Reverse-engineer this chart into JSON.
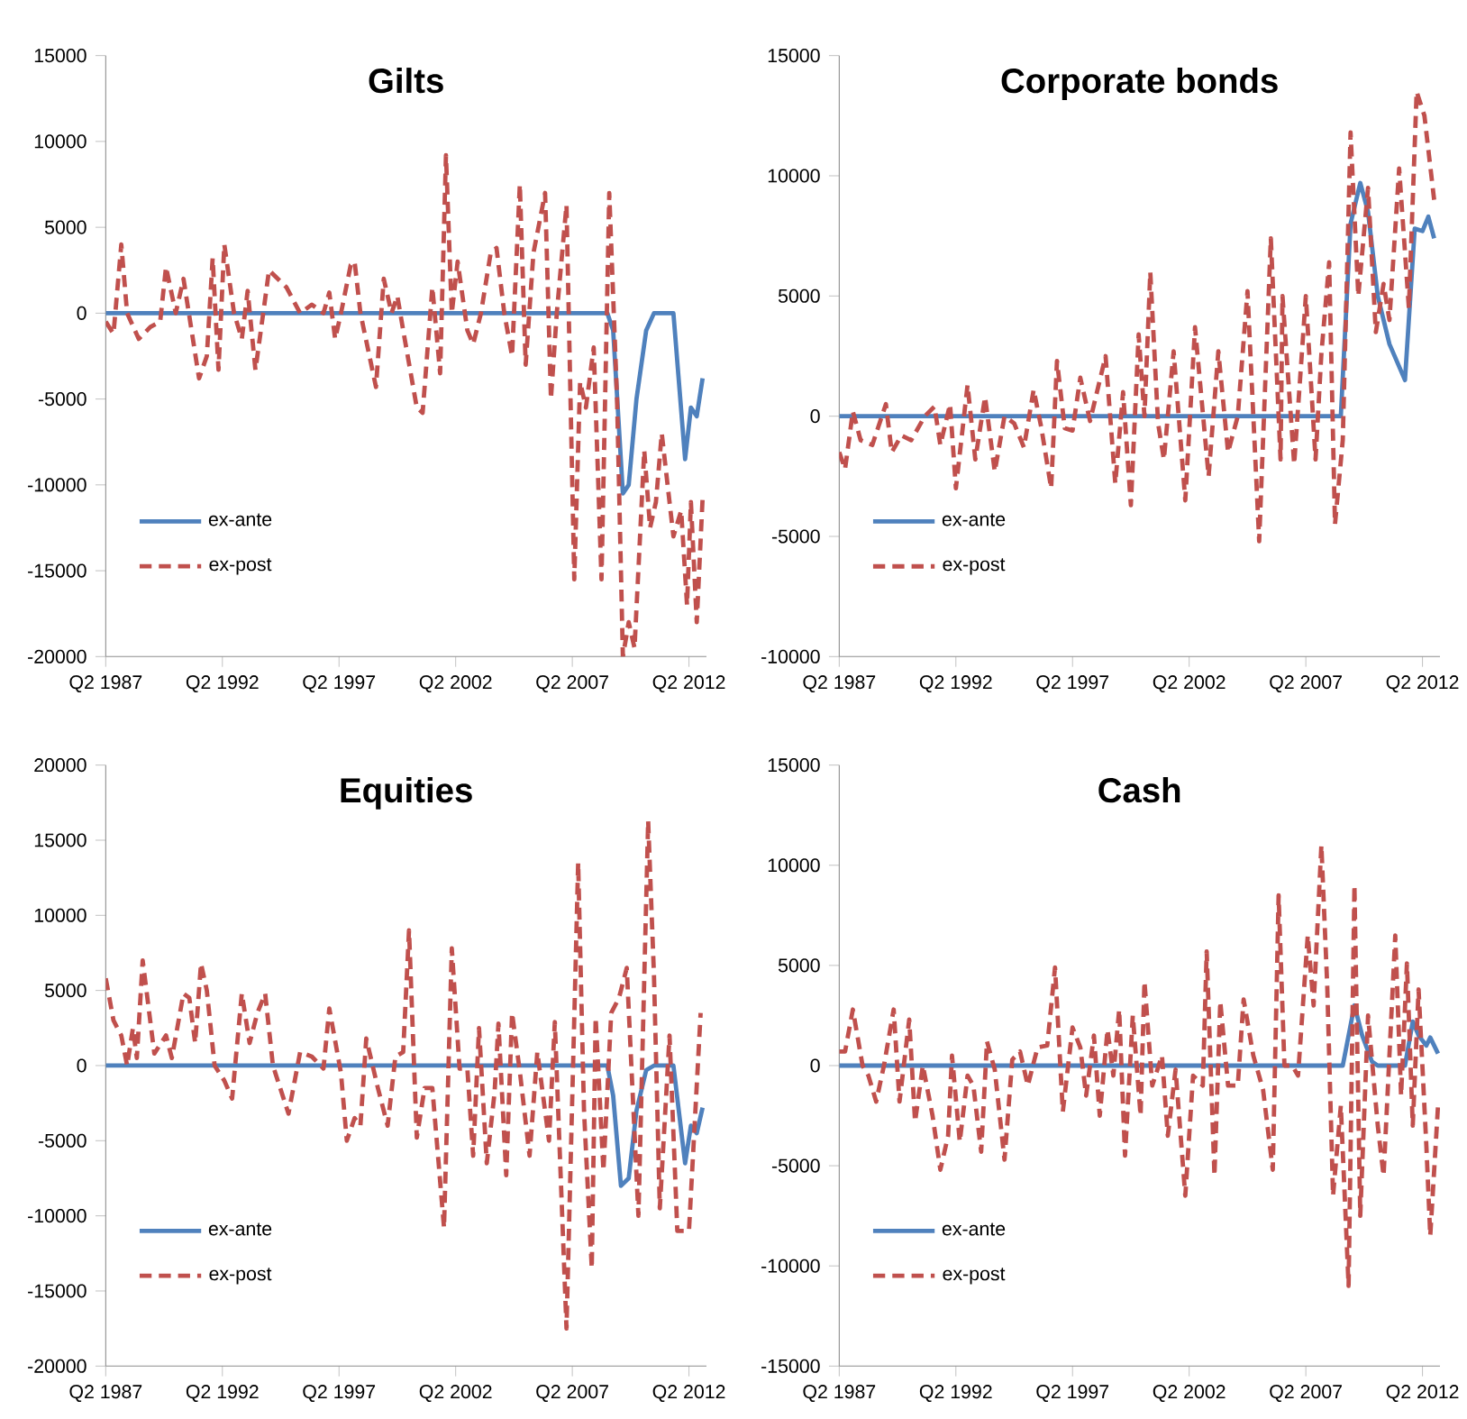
{
  "chart_data": [
    {
      "type": "line",
      "title": "Gilts",
      "xlim": [
        "1987-04",
        "2013-01"
      ],
      "ylim": [
        -20000,
        15000
      ],
      "yticks": [
        -20000,
        -15000,
        -10000,
        -5000,
        0,
        5000,
        10000,
        15000
      ],
      "xticks": [
        {
          "value": "1987-04",
          "label": "Q2 1987"
        },
        {
          "value": "1992-04",
          "label": "Q2 1992"
        },
        {
          "value": "1997-04",
          "label": "Q2 1997"
        },
        {
          "value": "2002-04",
          "label": "Q2 2002"
        },
        {
          "value": "2007-04",
          "label": "Q2 2007"
        },
        {
          "value": "2012-04",
          "label": "Q2 2012"
        }
      ],
      "legend": "bottom left",
      "grid": false,
      "series": [
        {
          "name": "ex-ante",
          "color": "#4f81bd",
          "line_style": "solid",
          "x": [
            "1987-04",
            "2008-10",
            "2009-01",
            "2009-06",
            "2009-09",
            "2010-01",
            "2010-06",
            "2010-10",
            "2011-08",
            "2012-02",
            "2012-05",
            "2012-08",
            "2012-11"
          ],
          "values": [
            0,
            0,
            -1000,
            -10500,
            -10000,
            -5000,
            -1000,
            0,
            0,
            -8500,
            -5500,
            -6000,
            -3800
          ]
        },
        {
          "name": "ex-post",
          "color": "#c0504d",
          "line_style": "dashed",
          "x": [
            "1987-04",
            "1987-08",
            "1987-12",
            "1988-03",
            "1988-09",
            "1989-03",
            "1989-08",
            "1989-11",
            "1990-04",
            "1990-08",
            "1991-04",
            "1991-08",
            "1991-11",
            "1992-02",
            "1992-05",
            "1992-10",
            "1993-02",
            "1993-05",
            "1993-09",
            "1994-01",
            "1994-04",
            "1995-01",
            "1995-08",
            "1996-02",
            "1996-08",
            "1996-11",
            "1997-02",
            "1997-05",
            "1997-10",
            "1997-12",
            "1998-03",
            "1998-11",
            "1999-03",
            "1999-07",
            "1999-10",
            "2000-01",
            "2000-08",
            "2000-11",
            "2001-04",
            "2001-08",
            "2001-11",
            "2002-02",
            "2002-05",
            "2002-10",
            "2003-01",
            "2003-05",
            "2003-10",
            "2004-01",
            "2004-05",
            "2004-09",
            "2005-01",
            "2005-04",
            "2005-08",
            "2006-02",
            "2006-05",
            "2006-08",
            "2007-01",
            "2007-05",
            "2007-08",
            "2007-11",
            "2008-03",
            "2008-07",
            "2008-11",
            "2009-03",
            "2009-06",
            "2009-09",
            "2009-12",
            "2010-05",
            "2010-08",
            "2010-11",
            "2011-02",
            "2011-05",
            "2011-08",
            "2011-12",
            "2012-03",
            "2012-05",
            "2012-08",
            "2012-11"
          ],
          "values": [
            -500,
            -1200,
            4000,
            0,
            -1500,
            -800,
            -500,
            2700,
            0,
            2000,
            -3800,
            -2500,
            3200,
            -3300,
            4000,
            0,
            -1500,
            1300,
            -3300,
            0,
            2500,
            1500,
            0,
            500,
            0,
            1200,
            -1500,
            0,
            2800,
            3000,
            0,
            -4300,
            2000,
            0,
            1000,
            -1000,
            -5500,
            -5800,
            1500,
            -3500,
            9200,
            0,
            3000,
            -1000,
            -1800,
            0,
            3500,
            3800,
            0,
            -2500,
            7500,
            -3000,
            3500,
            7000,
            -5000,
            0,
            6300,
            -15500,
            -4000,
            -5500,
            -2000,
            -15500,
            7000,
            -5000,
            -20000,
            -18000,
            -19500,
            -8000,
            -12500,
            -11000,
            -7000,
            -10000,
            -13000,
            -11500,
            -17000,
            -11000,
            -18000,
            -10800
          ]
        }
      ]
    },
    {
      "type": "line",
      "title": "Corporate bonds",
      "xlim": [
        "1987-04",
        "2013-01"
      ],
      "ylim": [
        -10000,
        15000
      ],
      "yticks": [
        -10000,
        -5000,
        0,
        5000,
        10000,
        15000
      ],
      "xticks": [
        {
          "value": "1987-04",
          "label": "Q2 1987"
        },
        {
          "value": "1992-04",
          "label": "Q2 1992"
        },
        {
          "value": "1997-04",
          "label": "Q2 1997"
        },
        {
          "value": "2002-04",
          "label": "Q2 2002"
        },
        {
          "value": "2007-04",
          "label": "Q2 2007"
        },
        {
          "value": "2012-04",
          "label": "Q2 2012"
        }
      ],
      "legend": "bottom left",
      "grid": false,
      "series": [
        {
          "name": "ex-ante",
          "color": "#4f81bd",
          "line_style": "solid",
          "x": [
            "1987-04",
            "2008-10",
            "2009-03",
            "2009-08",
            "2009-12",
            "2010-05",
            "2010-11",
            "2011-07",
            "2011-12",
            "2012-04",
            "2012-07",
            "2012-10"
          ],
          "values": [
            0,
            0,
            8000,
            9700,
            8500,
            5000,
            3000,
            1500,
            7800,
            7700,
            8300,
            7400
          ]
        },
        {
          "name": "ex-post",
          "color": "#c0504d",
          "line_style": "dashed",
          "x": [
            "1987-04",
            "1987-07",
            "1987-11",
            "1988-03",
            "1988-09",
            "1989-04",
            "1989-07",
            "1989-12",
            "1990-05",
            "1990-12",
            "1991-05",
            "1991-08",
            "1992-01",
            "1992-04",
            "1992-10",
            "1993-02",
            "1993-07",
            "1993-12",
            "1994-05",
            "1994-10",
            "1995-03",
            "1995-08",
            "1995-12",
            "1996-05",
            "1996-08",
            "1996-12",
            "1997-04",
            "1997-08",
            "1998-01",
            "1998-09",
            "1999-02",
            "1999-06",
            "1999-10",
            "2000-02",
            "2000-05",
            "2000-08",
            "2000-12",
            "2001-03",
            "2001-08",
            "2002-02",
            "2002-07",
            "2003-02",
            "2003-07",
            "2003-12",
            "2004-05",
            "2004-10",
            "2005-04",
            "2005-10",
            "2006-03",
            "2006-04",
            "2006-10",
            "2007-04",
            "2007-09",
            "2007-12",
            "2008-04",
            "2008-07",
            "2008-11",
            "2009-03",
            "2009-07",
            "2009-12",
            "2010-04",
            "2010-08",
            "2010-11",
            "2011-04",
            "2011-09",
            "2012-01",
            "2012-05",
            "2012-10"
          ],
          "values": [
            -1500,
            -2200,
            200,
            -1000,
            -1200,
            500,
            -1500,
            -800,
            -1000,
            0,
            400,
            -1200,
            500,
            -3000,
            1300,
            -1800,
            800,
            -2300,
            0,
            -300,
            -1300,
            1100,
            -500,
            -3000,
            2300,
            -500,
            -600,
            1600,
            -200,
            2500,
            -2800,
            1000,
            -3700,
            3400,
            0,
            6000,
            -300,
            -1800,
            2700,
            -3500,
            3700,
            -2500,
            2700,
            -1500,
            0,
            5200,
            -5200,
            7400,
            -1800,
            5000,
            -2000,
            5000,
            -1800,
            2600,
            6400,
            -4500,
            -1000,
            11800,
            5000,
            9500,
            3500,
            5500,
            4000,
            10300,
            4500,
            13500,
            12500,
            9000
          ]
        }
      ]
    },
    {
      "type": "line",
      "title": "Equities",
      "xlim": [
        "1987-04",
        "2013-01"
      ],
      "ylim": [
        -20000,
        20000
      ],
      "yticks": [
        -20000,
        -15000,
        -10000,
        -5000,
        0,
        5000,
        10000,
        15000,
        20000
      ],
      "xticks": [
        {
          "value": "1987-04",
          "label": "Q2 1987"
        },
        {
          "value": "1992-04",
          "label": "Q2 1992"
        },
        {
          "value": "1997-04",
          "label": "Q2 1997"
        },
        {
          "value": "2002-04",
          "label": "Q2 2002"
        },
        {
          "value": "2007-04",
          "label": "Q2 2007"
        },
        {
          "value": "2012-04",
          "label": "Q2 2012"
        }
      ],
      "legend": "bottom left",
      "grid": false,
      "series": [
        {
          "name": "ex-ante",
          "color": "#4f81bd",
          "line_style": "solid",
          "x": [
            "1987-04",
            "2008-10",
            "2009-01",
            "2009-05",
            "2009-09",
            "2010-01",
            "2010-06",
            "2010-10",
            "2011-08",
            "2012-02",
            "2012-05",
            "2012-08",
            "2012-11"
          ],
          "values": [
            0,
            0,
            -2000,
            -8000,
            -7500,
            -3000,
            -300,
            0,
            0,
            -6500,
            -4000,
            -4500,
            -2800
          ]
        },
        {
          "name": "ex-post",
          "color": "#c0504d",
          "line_style": "dashed",
          "x": [
            "1987-04",
            "1987-08",
            "1987-12",
            "1988-03",
            "1988-06",
            "1988-08",
            "1988-11",
            "1989-05",
            "1989-11",
            "1990-02",
            "1990-08",
            "1990-11",
            "1991-02",
            "1991-05",
            "1991-08",
            "1991-12",
            "1992-05",
            "1992-09",
            "1993-02",
            "1993-06",
            "1993-10",
            "1994-02",
            "1994-06",
            "1995-02",
            "1995-08",
            "1996-02",
            "1996-08",
            "1996-11",
            "1997-05",
            "1997-08",
            "1997-12",
            "1998-03",
            "1998-06",
            "1998-12",
            "1999-05",
            "1999-09",
            "2000-01",
            "2000-04",
            "2000-08",
            "2000-12",
            "2001-04",
            "2001-10",
            "2002-02",
            "2002-06",
            "2002-10",
            "2003-01",
            "2003-04",
            "2003-08",
            "2003-12",
            "2004-02",
            "2004-06",
            "2004-09",
            "2005-01",
            "2005-06",
            "2005-10",
            "2006-04",
            "2006-07",
            "2007-01",
            "2007-07",
            "2007-10",
            "2008-02",
            "2008-04",
            "2008-08",
            "2008-12",
            "2009-04",
            "2009-08",
            "2010-02",
            "2010-07",
            "2010-10",
            "2011-01",
            "2011-06",
            "2011-10",
            "2012-04",
            "2012-10"
          ],
          "values": [
            5800,
            3000,
            2000,
            0,
            2500,
            500,
            7000,
            800,
            2000,
            500,
            4800,
            4500,
            1500,
            6800,
            5000,
            0,
            -1000,
            -2200,
            4800,
            1500,
            3500,
            4800,
            0,
            -3200,
            900,
            600,
            -200,
            3800,
            -500,
            -5000,
            -3500,
            -4000,
            1800,
            -1500,
            -4000,
            600,
            900,
            9000,
            -4800,
            -1500,
            -1500,
            -10800,
            7800,
            -200,
            -200,
            -6000,
            2500,
            -6500,
            -1800,
            2800,
            -7300,
            3500,
            -400,
            -6000,
            900,
            -5000,
            2900,
            -17500,
            13500,
            -3000,
            -13500,
            3200,
            -7000,
            3500,
            4500,
            6500,
            -10000,
            16300,
            6000,
            -9500,
            2000,
            -11000,
            -11000,
            3500
          ]
        }
      ]
    },
    {
      "type": "line",
      "title": "Cash",
      "xlim": [
        "1987-04",
        "2013-01"
      ],
      "ylim": [
        -15000,
        15000
      ],
      "yticks": [
        -15000,
        -10000,
        -5000,
        0,
        5000,
        10000,
        15000
      ],
      "xticks": [
        {
          "value": "1987-04",
          "label": "Q2 1987"
        },
        {
          "value": "1992-04",
          "label": "Q2 1992"
        },
        {
          "value": "1997-04",
          "label": "Q2 1997"
        },
        {
          "value": "2002-04",
          "label": "Q2 2002"
        },
        {
          "value": "2007-04",
          "label": "Q2 2007"
        },
        {
          "value": "2012-04",
          "label": "Q2 2012"
        }
      ],
      "legend": "bottom left",
      "grid": false,
      "series": [
        {
          "name": "ex-ante",
          "color": "#4f81bd",
          "line_style": "solid",
          "x": [
            "1987-04",
            "2008-11",
            "2009-05",
            "2009-09",
            "2010-02",
            "2010-05",
            "2011-07",
            "2011-11",
            "2012-02",
            "2012-06",
            "2012-08",
            "2012-12"
          ],
          "values": [
            0,
            0,
            3000,
            1500,
            200,
            0,
            0,
            2200,
            1500,
            1000,
            1400,
            600
          ]
        },
        {
          "name": "ex-post",
          "color": "#c0504d",
          "line_style": "dashed",
          "x": [
            "1987-04",
            "1987-07",
            "1987-11",
            "1988-04",
            "1988-07",
            "1988-11",
            "1989-03",
            "1989-08",
            "1989-11",
            "1990-04",
            "1990-07",
            "1990-11",
            "1991-04",
            "1991-08",
            "1991-12",
            "1992-02",
            "1992-06",
            "1992-10",
            "1993-01",
            "1993-05",
            "1993-08",
            "1993-12",
            "1994-05",
            "1994-09",
            "1995-01",
            "1995-05",
            "1995-10",
            "1996-03",
            "1996-07",
            "1996-11",
            "1997-04",
            "1997-08",
            "1997-11",
            "1998-03",
            "1998-06",
            "1998-10",
            "1999-01",
            "1999-04",
            "1999-07",
            "1999-11",
            "2000-03",
            "2000-05",
            "2000-09",
            "2001-02",
            "2001-05",
            "2001-09",
            "2002-02",
            "2002-06",
            "2002-11",
            "2003-01",
            "2003-05",
            "2003-08",
            "2003-12",
            "2004-05",
            "2004-08",
            "2005-01",
            "2005-06",
            "2005-11",
            "2006-02",
            "2006-05",
            "2006-09",
            "2006-12",
            "2007-05",
            "2007-08",
            "2007-12",
            "2008-03",
            "2008-06",
            "2008-10",
            "2009-02",
            "2009-05",
            "2009-08",
            "2009-12",
            "2010-05",
            "2010-08",
            "2011-02",
            "2011-05",
            "2011-08",
            "2011-11",
            "2012-02",
            "2012-06",
            "2012-08",
            "2012-12"
          ],
          "values": [
            700,
            700,
            2800,
            0,
            -500,
            -1800,
            0,
            2800,
            -1800,
            2300,
            -2800,
            0,
            -2500,
            -5200,
            -3500,
            500,
            -3800,
            -500,
            -1000,
            -4300,
            1200,
            -200,
            -4700,
            300,
            700,
            -1000,
            900,
            1000,
            4900,
            -2300,
            1900,
            900,
            -1500,
            1500,
            -2500,
            1800,
            -500,
            2800,
            -4500,
            2500,
            -2500,
            4200,
            -1000,
            500,
            -3500,
            -200,
            -6500,
            -500,
            -1000,
            5700,
            -5500,
            3200,
            -1000,
            -1000,
            3300,
            500,
            -1200,
            -5200,
            8500,
            0,
            0,
            -500,
            6500,
            3000,
            11000,
            4000,
            -6500,
            -2000,
            -11000,
            9000,
            -7500,
            2500,
            -3000,
            -5500,
            6500,
            -1500,
            5100,
            -3000,
            3800,
            -4000,
            -8500,
            -2000
          ]
        }
      ]
    }
  ]
}
